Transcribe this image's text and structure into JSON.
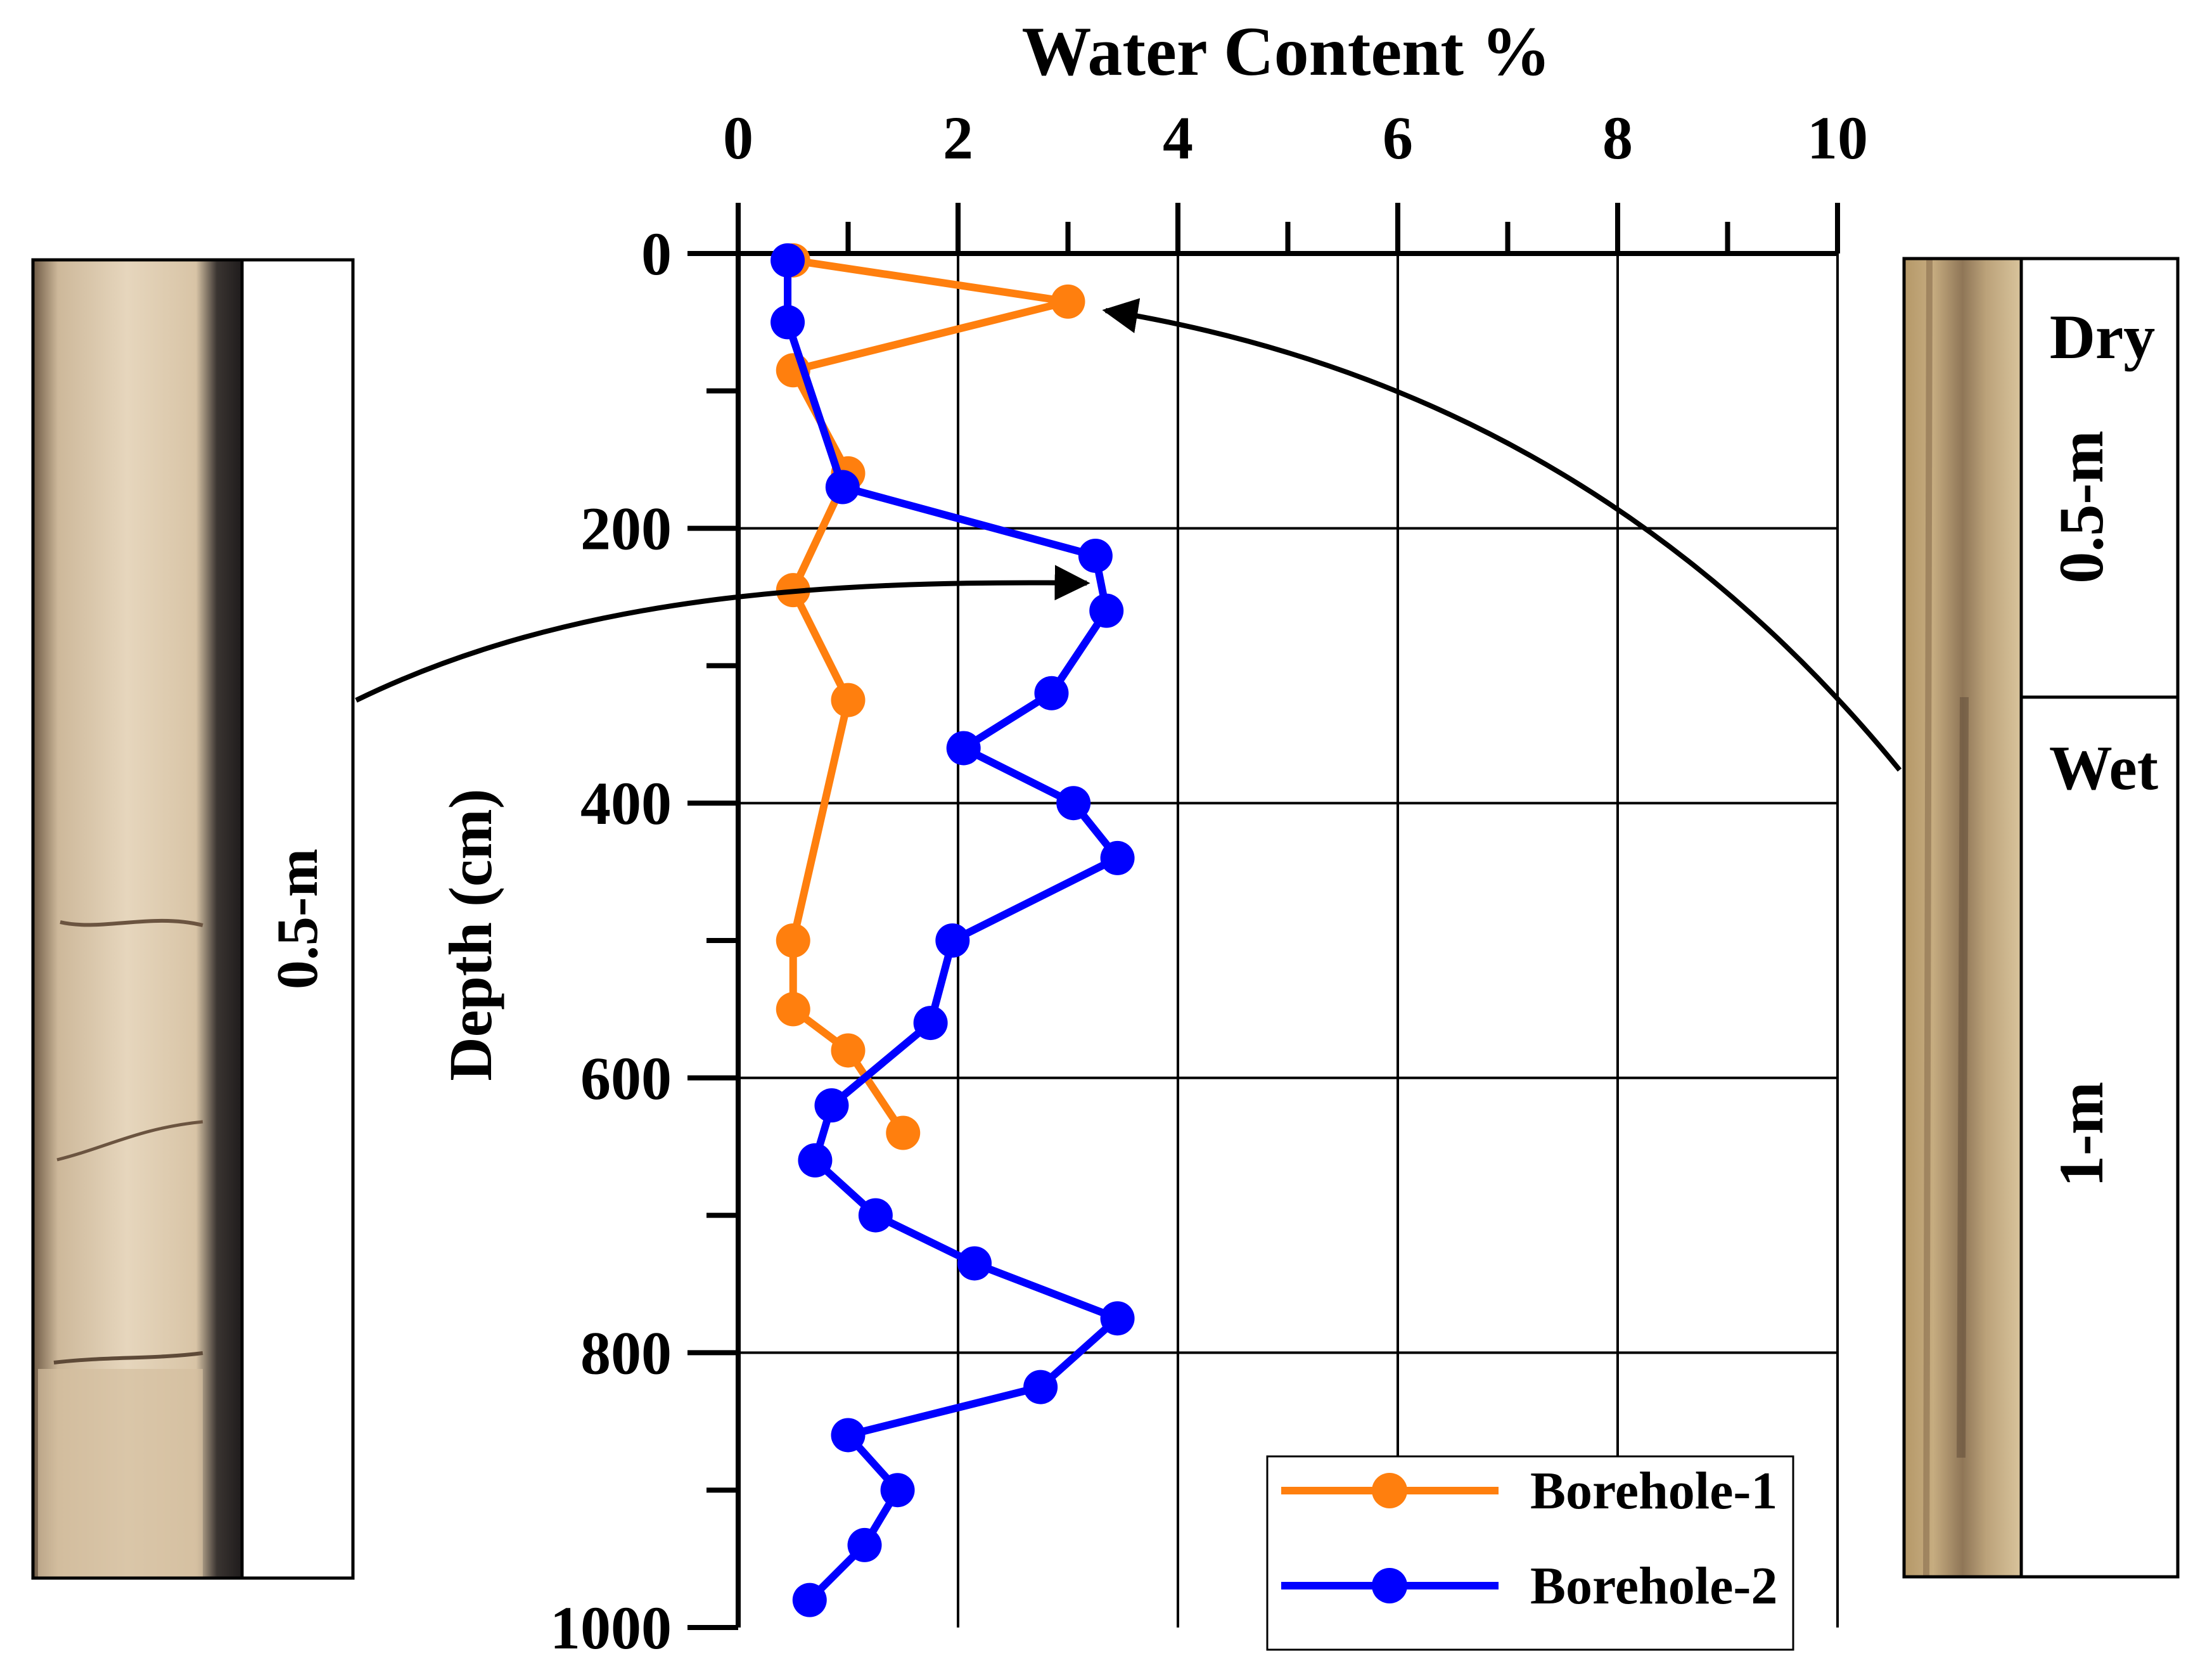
{
  "chart_data": {
    "type": "line",
    "title": "Water Content %",
    "xlabel": "Water Content %",
    "ylabel": "Depth (cm)",
    "xlim": [
      0,
      10
    ],
    "ylim": [
      0,
      1000
    ],
    "x_axis_position": "top",
    "y_axis_inverted": true,
    "grid": true,
    "x_ticks": [
      0,
      2,
      4,
      6,
      8,
      10
    ],
    "y_ticks": [
      0,
      200,
      400,
      600,
      800,
      1000
    ],
    "x_tick_labels": [
      "0",
      "2",
      "4",
      "6",
      "8",
      "10"
    ],
    "y_tick_labels": [
      "0",
      "200",
      "400",
      "600",
      "800",
      "1000"
    ],
    "legend_position": "bottom-right",
    "series": [
      {
        "name": "Borehole-1",
        "color": "#FF7F0E",
        "points": [
          [
            0.5,
            5
          ],
          [
            3.0,
            35
          ],
          [
            0.5,
            85
          ],
          [
            1.0,
            160
          ],
          [
            0.5,
            245
          ],
          [
            1.0,
            325
          ],
          [
            0.5,
            500
          ],
          [
            0.5,
            550
          ],
          [
            1.0,
            580
          ],
          [
            1.5,
            640
          ]
        ]
      },
      {
        "name": "Borehole-2",
        "color": "#0000FF",
        "points": [
          [
            0.45,
            5
          ],
          [
            0.45,
            50
          ],
          [
            0.95,
            170
          ],
          [
            3.25,
            220
          ],
          [
            3.35,
            260
          ],
          [
            2.85,
            320
          ],
          [
            2.05,
            360
          ],
          [
            3.05,
            400
          ],
          [
            3.45,
            440
          ],
          [
            1.95,
            500
          ],
          [
            1.75,
            560
          ],
          [
            0.85,
            620
          ],
          [
            0.7,
            660
          ],
          [
            1.25,
            700
          ],
          [
            2.15,
            735
          ],
          [
            3.45,
            775
          ],
          [
            2.75,
            825
          ],
          [
            1.0,
            860
          ],
          [
            1.45,
            900
          ],
          [
            1.15,
            940
          ],
          [
            0.65,
            980
          ]
        ]
      }
    ]
  },
  "annotations": {
    "left_core_label": "0.5-m",
    "right_core_dry": "Dry",
    "right_core_dry_length": "0.5-m",
    "right_core_wet": "Wet",
    "right_core_wet_length": "1-m"
  },
  "colors": {
    "borehole1": "#FF7F0E",
    "borehole2": "#0000FF",
    "axis": "#000000"
  }
}
